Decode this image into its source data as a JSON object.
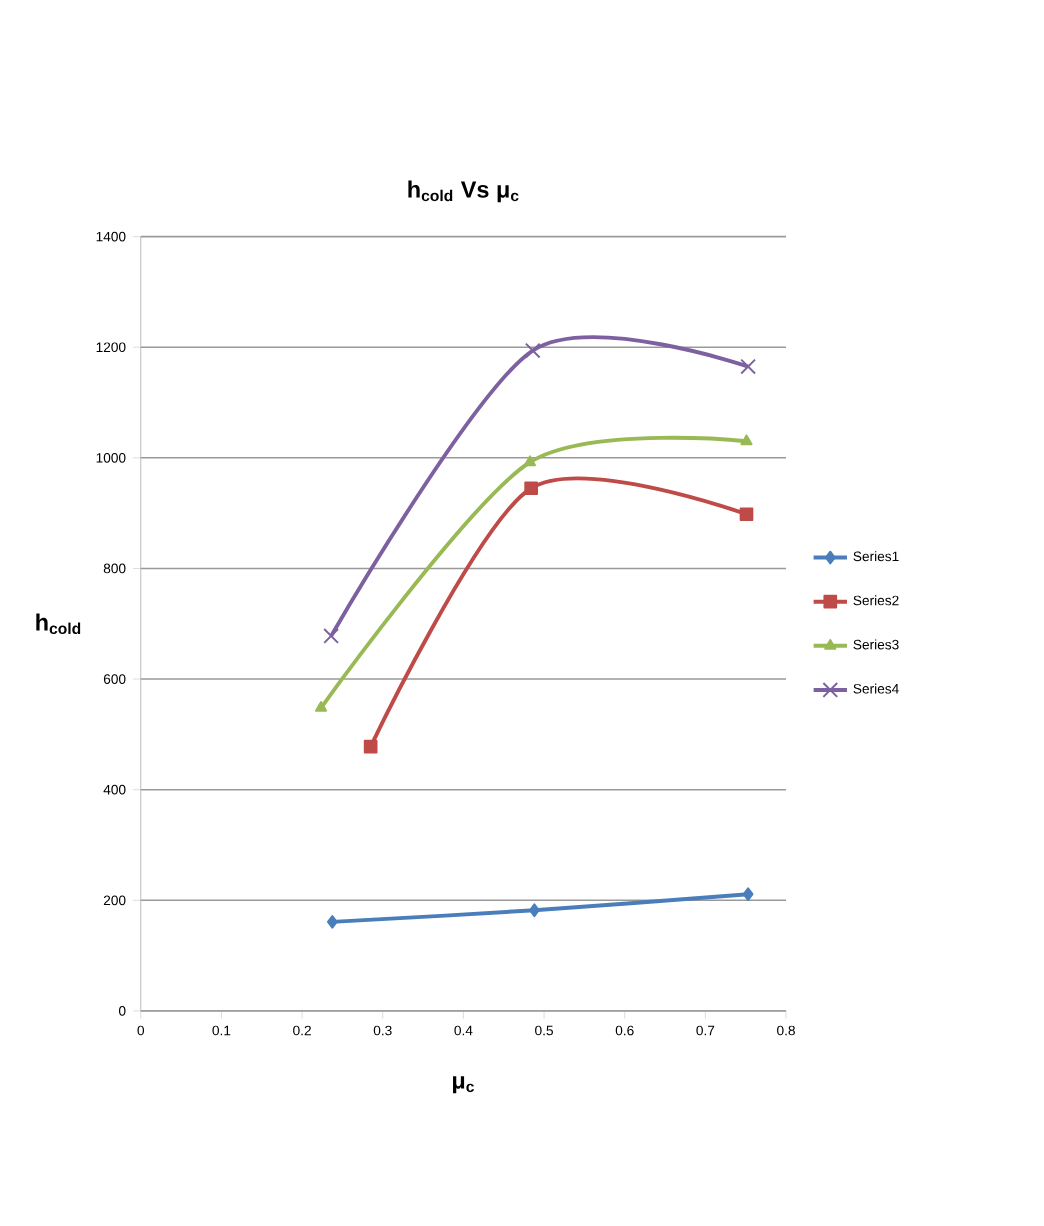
{
  "chart_data": {
    "type": "line",
    "title": "h$_{cold}$ Vs μ$_{c}$",
    "xlabel": "μ$_{c}$",
    "ylabel": "h$_{cold}$",
    "xlim": [
      0,
      0.8
    ],
    "xticks": [
      0,
      0.1,
      0.2,
      0.3,
      0.4,
      0.5,
      0.6,
      0.7,
      0.8
    ],
    "ylim": [
      0,
      1400
    ],
    "yticks": [
      0,
      200,
      400,
      600,
      800,
      1000,
      1200,
      1400
    ],
    "grid": "y",
    "legend": "right",
    "series": [
      {
        "name": "Series1",
        "color": "#4a7ebb",
        "marker": "diamond",
        "x": [
          0.2375,
          0.488,
          0.753
        ],
        "values": [
          161,
          182,
          211
        ]
      },
      {
        "name": "Series2",
        "color": "#be4b48",
        "marker": "square",
        "x": [
          0.285,
          0.484,
          0.751
        ],
        "values": [
          478,
          945,
          898
        ]
      },
      {
        "name": "Series3",
        "color": "#98b954",
        "marker": "triangle",
        "x": [
          0.2235,
          0.4825,
          0.751
        ],
        "values": [
          548,
          992,
          1030
        ]
      },
      {
        "name": "Series4",
        "color": "#7d60a0",
        "marker": "cross",
        "x": [
          0.236,
          0.486,
          0.753
        ],
        "values": [
          678,
          1194,
          1165
        ]
      }
    ]
  }
}
